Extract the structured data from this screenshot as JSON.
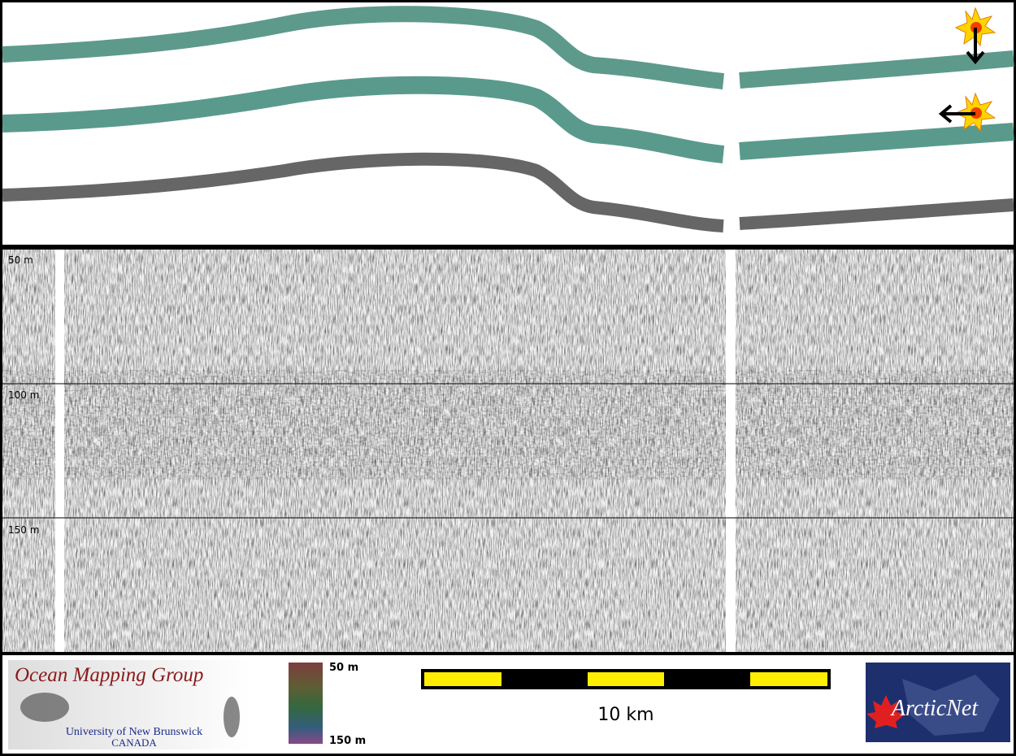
{
  "profile": {
    "depth_labels": [
      "50 m",
      "100 m",
      "150 m"
    ]
  },
  "logo": {
    "title": "Ocean Mapping Group",
    "institution": "University of New Brunswick",
    "country": "CANADA"
  },
  "colorbar": {
    "top_label": "50 m",
    "bottom_label": "150 m"
  },
  "scale_bar": {
    "label": "10 km"
  },
  "partner_logo": {
    "name": "ArcticNet"
  }
}
